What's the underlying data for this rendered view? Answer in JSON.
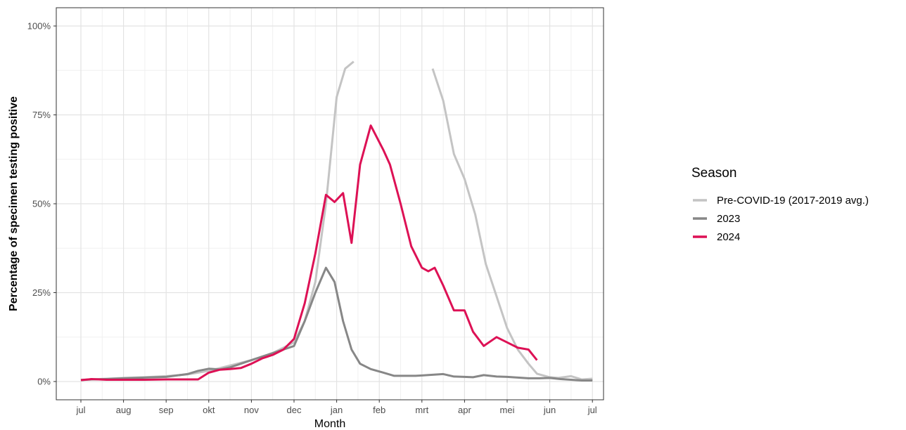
{
  "chart_data": {
    "type": "line",
    "xlabel": "Month",
    "ylabel": "Percentage of specimen testing positive",
    "x_ticks": [
      "jul",
      "aug",
      "sep",
      "okt",
      "nov",
      "dec",
      "jan",
      "feb",
      "mrt",
      "apr",
      "mei",
      "jun",
      "jul"
    ],
    "y_ticks": [
      "0%",
      "25%",
      "50%",
      "75%",
      "100%"
    ],
    "ylim": [
      0,
      100
    ],
    "xlim": [
      -0.1,
      12.2
    ],
    "grid": true,
    "legend_title": "Season",
    "legend_position": "right",
    "series": [
      {
        "name": "Pre-COVID-19 (2017-2019 avg.)",
        "color": "#c4c4c4",
        "segments": [
          [
            [
              0,
              0.5
            ],
            [
              0.25,
              0.6
            ],
            [
              0.6,
              0.8
            ],
            [
              1,
              1.0
            ],
            [
              1.5,
              1.2
            ],
            [
              2,
              1.5
            ],
            [
              2.5,
              2.0
            ],
            [
              3,
              3.0
            ],
            [
              3.5,
              4.5
            ],
            [
              4,
              6.0
            ],
            [
              4.5,
              8.0
            ],
            [
              5,
              11.0
            ],
            [
              5.25,
              17.0
            ],
            [
              5.5,
              28.0
            ],
            [
              5.75,
              50.0
            ],
            [
              6,
              80.0
            ],
            [
              6.2,
              88.0
            ],
            [
              6.4,
              90.0
            ]
          ],
          [
            [
              8.25,
              88.0
            ],
            [
              8.5,
              79.0
            ],
            [
              8.75,
              64.0
            ],
            [
              9,
              57.0
            ],
            [
              9.25,
              47.0
            ],
            [
              9.5,
              33.0
            ],
            [
              9.75,
              24.0
            ],
            [
              10,
              15.0
            ],
            [
              10.25,
              9.0
            ],
            [
              10.5,
              5.0
            ],
            [
              10.7,
              2.2
            ],
            [
              11,
              1.2
            ],
            [
              11.2,
              1.0
            ],
            [
              11.5,
              1.5
            ],
            [
              11.75,
              0.6
            ],
            [
              12,
              0.8
            ]
          ]
        ]
      },
      {
        "name": "2023",
        "color": "#878787",
        "segments": [
          [
            [
              0,
              0.4
            ],
            [
              0.25,
              0.6
            ],
            [
              0.6,
              0.7
            ],
            [
              1,
              0.9
            ],
            [
              1.5,
              1.1
            ],
            [
              2,
              1.3
            ],
            [
              2.5,
              2.1
            ],
            [
              2.75,
              3.0
            ],
            [
              3,
              3.6
            ],
            [
              3.25,
              3.4
            ],
            [
              3.5,
              4.0
            ],
            [
              3.75,
              5.0
            ],
            [
              4,
              6.0
            ],
            [
              4.25,
              7.0
            ],
            [
              4.5,
              8.0
            ],
            [
              4.75,
              9.0
            ],
            [
              5,
              10.0
            ],
            [
              5.25,
              17.0
            ],
            [
              5.5,
              25.0
            ],
            [
              5.75,
              32.0
            ],
            [
              5.95,
              28.0
            ],
            [
              6.15,
              17.0
            ],
            [
              6.35,
              9.0
            ],
            [
              6.55,
              5.0
            ],
            [
              6.8,
              3.5
            ],
            [
              7.1,
              2.5
            ],
            [
              7.35,
              1.6
            ],
            [
              7.6,
              1.6
            ],
            [
              7.85,
              1.6
            ],
            [
              8,
              1.7
            ],
            [
              8.25,
              1.9
            ],
            [
              8.5,
              2.1
            ],
            [
              8.75,
              1.4
            ],
            [
              9,
              1.3
            ],
            [
              9.2,
              1.2
            ],
            [
              9.45,
              1.8
            ],
            [
              9.75,
              1.4
            ],
            [
              10,
              1.3
            ],
            [
              10.25,
              1.1
            ],
            [
              10.5,
              0.9
            ],
            [
              10.75,
              0.9
            ],
            [
              11,
              1.0
            ],
            [
              11.25,
              0.7
            ],
            [
              11.5,
              0.5
            ],
            [
              11.75,
              0.3
            ],
            [
              12,
              0.3
            ]
          ]
        ]
      },
      {
        "name": "2024",
        "color": "#dd1155",
        "segments": [
          [
            [
              0,
              0.4
            ],
            [
              0.25,
              0.7
            ],
            [
              0.6,
              0.5
            ],
            [
              1,
              0.5
            ],
            [
              1.5,
              0.5
            ],
            [
              2,
              0.6
            ],
            [
              2.5,
              0.6
            ],
            [
              2.75,
              0.6
            ],
            [
              3,
              2.5
            ],
            [
              3.25,
              3.3
            ],
            [
              3.5,
              3.5
            ],
            [
              3.75,
              3.8
            ],
            [
              4,
              5.0
            ],
            [
              4.25,
              6.5
            ],
            [
              4.5,
              7.5
            ],
            [
              4.75,
              9.0
            ],
            [
              5,
              12.0
            ],
            [
              5.25,
              22.0
            ],
            [
              5.5,
              36.0
            ],
            [
              5.75,
              52.5
            ],
            [
              5.95,
              50.5
            ],
            [
              6.15,
              53.0
            ],
            [
              6.35,
              39.0
            ],
            [
              6.55,
              61.0
            ],
            [
              6.8,
              72.0
            ],
            [
              7.1,
              65.0
            ],
            [
              7.25,
              61.0
            ],
            [
              7.5,
              50.0
            ],
            [
              7.75,
              38.0
            ],
            [
              8,
              32.0
            ],
            [
              8.15,
              31.0
            ],
            [
              8.3,
              32.0
            ],
            [
              8.5,
              27.0
            ],
            [
              8.75,
              20.0
            ],
            [
              9,
              20.0
            ],
            [
              9.2,
              14.0
            ],
            [
              9.45,
              10.0
            ],
            [
              9.75,
              12.5
            ],
            [
              10,
              11.0
            ],
            [
              10.25,
              9.5
            ],
            [
              10.5,
              9.0
            ],
            [
              10.7,
              6.0
            ]
          ]
        ]
      }
    ]
  }
}
